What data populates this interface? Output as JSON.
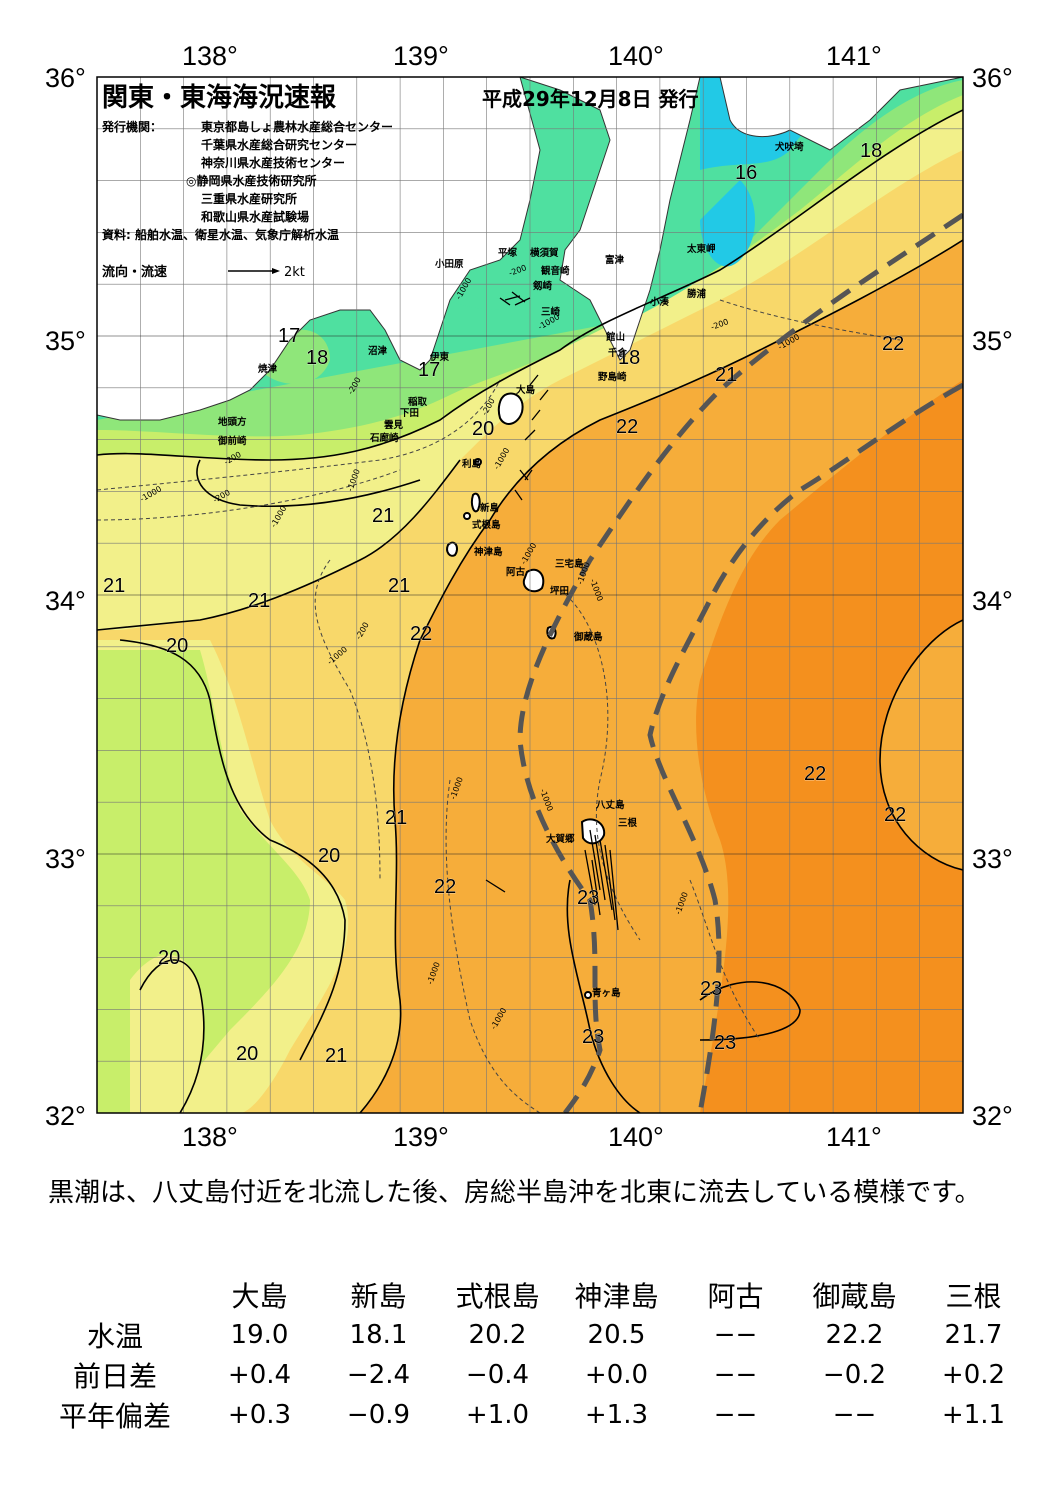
{
  "title": "関東・東海海況速報",
  "issue_date": "平成29年12月8日 発行",
  "publishers_label": "発行機関：",
  "publishers": [
    "東京都島しょ農林水産総合センター",
    "千葉県水産総合研究センター",
    "神奈川県水産技術センター",
    "◎静岡県水産技術研究所",
    "三重県水産研究所",
    "和歌山県水産試験場"
  ],
  "sources": "資料: 船舶水温、衛星水温、気象庁解析水温",
  "current_legend": {
    "label": "流向・流速",
    "unit": "2kt"
  },
  "axes": {
    "lon_ticks": [
      "138°",
      "139°",
      "140°",
      "141°"
    ],
    "lat_ticks": [
      "36°",
      "35°",
      "34°",
      "33°",
      "32°"
    ]
  },
  "colors": {
    "t16": "#22c9e6",
    "t17": "#4fe0a0",
    "t18": "#8fe67a",
    "t19": "#c8ee6a",
    "t20": "#f2f08a",
    "t21": "#f8d86a",
    "t22": "#f6ad3a",
    "t23": "#f4901e",
    "t24": "#f37a10",
    "land": "#ffffff",
    "kuroshio": "#555555"
  },
  "place_names": [
    "犬吠埼",
    "太東岬",
    "勝浦",
    "小湊",
    "富津",
    "横須賀",
    "平塚",
    "観音崎",
    "小田原",
    "剱崎",
    "三崎",
    "館山",
    "千倉",
    "野島崎",
    "沼津",
    "伊東",
    "焼津",
    "稲取",
    "下田",
    "雲見",
    "石廊崎",
    "地頭方",
    "御前崎",
    "大島",
    "利島",
    "新島",
    "式根島",
    "神津島",
    "三宅島",
    "阿古",
    "坪田",
    "御蔵島",
    "八丈島",
    "三根",
    "大賀郷",
    "青ヶ島"
  ],
  "isotherm_labels": [
    "18",
    "16",
    "17",
    "18",
    "18",
    "17",
    "22",
    "21",
    "20",
    "22",
    "21",
    "21",
    "21",
    "21",
    "22",
    "20",
    "22",
    "22",
    "21",
    "20",
    "22",
    "23",
    "20",
    "23",
    "20",
    "21",
    "23",
    "23"
  ],
  "depth_labels": [
    "-200",
    "-200",
    "-1000",
    "-200",
    "-1000",
    "-200",
    "-1000",
    "-1000",
    "-200",
    "-1000",
    "-1000",
    "-1000",
    "-1000",
    "-1000",
    "-1000",
    "-200",
    "-1000",
    "-1000",
    "-1000",
    "-1000",
    "-1000",
    "-200",
    "-1000"
  ],
  "summary": "黒潮は、八丈島付近を北流した後、房総半島沖を北東に流去している模様です。",
  "table": {
    "headers": [
      "大島",
      "新島",
      "式根島",
      "神津島",
      "阿古",
      "御蔵島",
      "三根"
    ],
    "rows": [
      {
        "label": "水温",
        "values": [
          "19.0",
          "18.1",
          "20.2",
          "20.5",
          "−−",
          "22.2",
          "21.7"
        ]
      },
      {
        "label": "前日差",
        "values": [
          "+0.4",
          "−2.4",
          "−0.4",
          "+0.0",
          "−−",
          "−0.2",
          "+0.2"
        ]
      },
      {
        "label": "平年偏差",
        "values": [
          "+0.3",
          "−0.9",
          "+1.0",
          "+1.3",
          "−−",
          "−−",
          "+1.1"
        ]
      }
    ]
  }
}
